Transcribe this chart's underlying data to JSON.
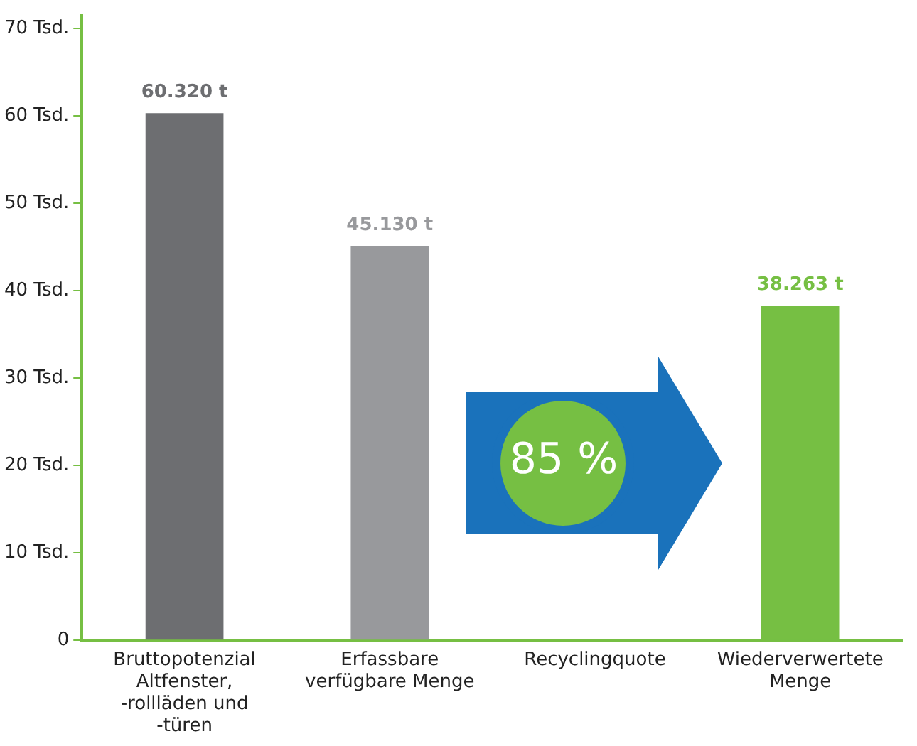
{
  "chart_data": {
    "type": "bar",
    "categories": [
      "Bruttopotenzial Altfenster, -rollläden und -türen",
      "Erfassbare verfügbare Menge",
      "Recyclingquote",
      "Wiederverwertete Menge"
    ],
    "values": [
      60.32,
      45.13,
      null,
      38.263
    ],
    "colors": [
      "#6d6e71",
      "#98999c",
      "#1a72bb",
      "#76bf43"
    ],
    "value_labels": [
      "60.320 t",
      "45.130 t",
      null,
      "38.263 t"
    ],
    "annotations": [
      "85 %"
    ],
    "ylim": [
      0,
      71.5
    ],
    "yticks": [
      0,
      {
        "value": 10,
        "label": "10 Tsd."
      },
      {
        "value": 20,
        "label": "20 Tsd."
      },
      {
        "value": 30,
        "label": "30 Tsd."
      },
      {
        "value": 40,
        "label": "40 Tsd."
      },
      {
        "value": 50,
        "label": "50 Tsd."
      },
      {
        "value": 60,
        "label": "60 Tsd."
      },
      {
        "value": 70,
        "label": "70 Tsd."
      }
    ],
    "grid": false,
    "legend": false
  }
}
